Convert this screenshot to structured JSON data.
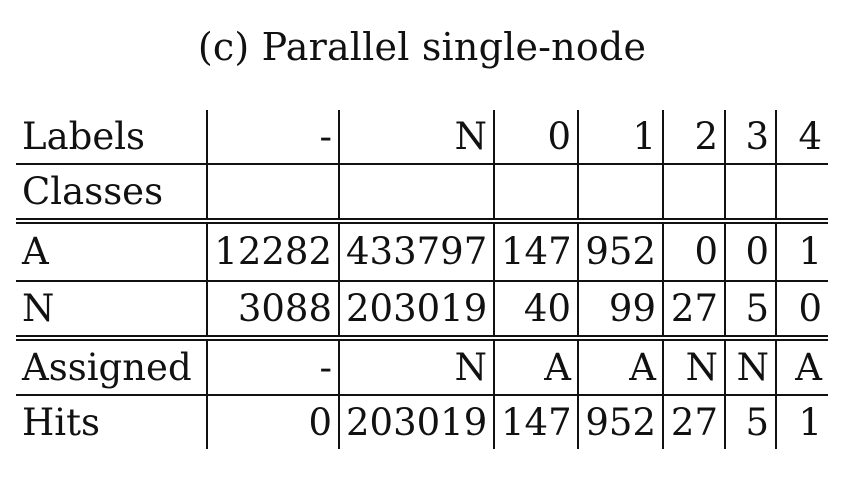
{
  "caption": "(c) Parallel single-node",
  "table": {
    "rows": {
      "labels": [
        "Labels",
        "-",
        "N",
        "0",
        "1",
        "2",
        "3",
        "4"
      ],
      "classes": [
        "Classes",
        "",
        "",
        "",
        "",
        "",
        "",
        ""
      ],
      "a": [
        "A",
        "12282",
        "433797",
        "147",
        "952",
        "0",
        "0",
        "1"
      ],
      "n": [
        "N",
        "3088",
        "203019",
        "40",
        "99",
        "27",
        "5",
        "0"
      ],
      "assigned": [
        "Assigned",
        "-",
        "N",
        "A",
        "A",
        "N",
        "N",
        "A"
      ],
      "hits": [
        "Hits",
        "0",
        "203019",
        "147",
        "952",
        "27",
        "5",
        "1"
      ]
    }
  }
}
